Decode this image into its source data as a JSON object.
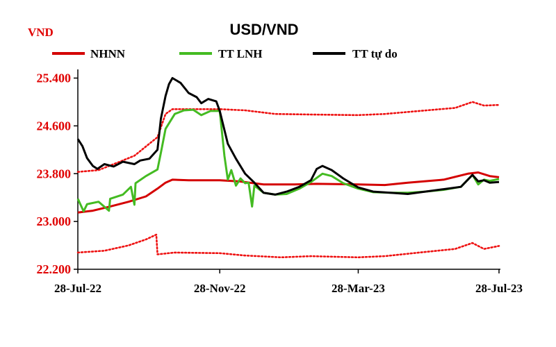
{
  "chart_data": {
    "type": "line",
    "title": "USD/VND",
    "unit_label": "VND",
    "ylim": [
      22200,
      25800
    ],
    "y_ticks": [
      22200,
      23000,
      23800,
      24600,
      25400
    ],
    "y_tick_labels": [
      "22.200",
      "23.000",
      "23.800",
      "24.600",
      "25.400"
    ],
    "x_ticks": [
      "2022-07-28",
      "2022-11-28",
      "2023-03-28",
      "2023-07-28"
    ],
    "x_tick_labels": [
      "28-Jul-22",
      "28-Nov-22",
      "28-Mar-23",
      "28-Jul-23"
    ],
    "xlim": [
      "2022-07-28",
      "2023-07-28"
    ],
    "grid": false,
    "legend_position": "top",
    "series": [
      {
        "name": "NHNN",
        "color": "#d40000",
        "style": "solid",
        "points": [
          [
            "2022-07-28",
            23150
          ],
          [
            "2022-08-10",
            23180
          ],
          [
            "2022-08-25",
            23250
          ],
          [
            "2022-09-10",
            23330
          ],
          [
            "2022-09-25",
            23420
          ],
          [
            "2022-10-05",
            23550
          ],
          [
            "2022-10-12",
            23650
          ],
          [
            "2022-10-18",
            23700
          ],
          [
            "2022-11-01",
            23690
          ],
          [
            "2022-11-28",
            23690
          ],
          [
            "2022-12-15",
            23670
          ],
          [
            "2023-01-05",
            23620
          ],
          [
            "2023-02-01",
            23620
          ],
          [
            "2023-02-20",
            23630
          ],
          [
            "2023-03-28",
            23620
          ],
          [
            "2023-04-20",
            23610
          ],
          [
            "2023-05-10",
            23650
          ],
          [
            "2023-06-10",
            23700
          ],
          [
            "2023-07-01",
            23800
          ],
          [
            "2023-07-10",
            23820
          ],
          [
            "2023-07-20",
            23760
          ],
          [
            "2023-07-28",
            23740
          ]
        ]
      },
      {
        "name": "",
        "color": "#ee1111",
        "style": "dotted",
        "points": [
          [
            "2022-07-28",
            23830
          ],
          [
            "2022-08-15",
            23860
          ],
          [
            "2022-09-01",
            23990
          ],
          [
            "2022-09-15",
            24100
          ],
          [
            "2022-10-05",
            24410
          ],
          [
            "2022-10-12",
            24800
          ],
          [
            "2022-10-18",
            24880
          ],
          [
            "2022-11-28",
            24880
          ],
          [
            "2022-12-20",
            24860
          ],
          [
            "2023-01-15",
            24800
          ],
          [
            "2023-02-15",
            24790
          ],
          [
            "2023-03-28",
            24780
          ],
          [
            "2023-04-20",
            24800
          ],
          [
            "2023-05-20",
            24850
          ],
          [
            "2023-06-20",
            24900
          ],
          [
            "2023-07-05",
            25000
          ],
          [
            "2023-07-15",
            24940
          ],
          [
            "2023-07-28",
            24950
          ]
        ]
      },
      {
        "name": "",
        "color": "#ee1111",
        "style": "dotted",
        "points": [
          [
            "2022-07-28",
            22480
          ],
          [
            "2022-08-20",
            22510
          ],
          [
            "2022-09-10",
            22600
          ],
          [
            "2022-09-25",
            22700
          ],
          [
            "2022-10-04",
            22780
          ],
          [
            "2022-10-05",
            22450
          ],
          [
            "2022-10-20",
            22480
          ],
          [
            "2022-11-28",
            22470
          ],
          [
            "2022-12-20",
            22430
          ],
          [
            "2023-01-20",
            22400
          ],
          [
            "2023-02-15",
            22420
          ],
          [
            "2023-03-28",
            22400
          ],
          [
            "2023-04-20",
            22420
          ],
          [
            "2023-05-20",
            22480
          ],
          [
            "2023-06-20",
            22540
          ],
          [
            "2023-07-05",
            22640
          ],
          [
            "2023-07-15",
            22540
          ],
          [
            "2023-07-28",
            22590
          ]
        ]
      },
      {
        "name": "TT LNH",
        "color": "#44bb22",
        "style": "solid",
        "points": [
          [
            "2022-07-28",
            23380
          ],
          [
            "2022-08-02",
            23170
          ],
          [
            "2022-08-05",
            23290
          ],
          [
            "2022-08-15",
            23330
          ],
          [
            "2022-08-24",
            23180
          ],
          [
            "2022-08-25",
            23380
          ],
          [
            "2022-09-05",
            23450
          ],
          [
            "2022-09-12",
            23580
          ],
          [
            "2022-09-15",
            23280
          ],
          [
            "2022-09-16",
            23640
          ],
          [
            "2022-09-25",
            23760
          ],
          [
            "2022-10-05",
            23870
          ],
          [
            "2022-10-08",
            24150
          ],
          [
            "2022-10-12",
            24550
          ],
          [
            "2022-10-20",
            24800
          ],
          [
            "2022-10-28",
            24860
          ],
          [
            "2022-11-05",
            24870
          ],
          [
            "2022-11-12",
            24780
          ],
          [
            "2022-11-20",
            24850
          ],
          [
            "2022-11-28",
            24850
          ],
          [
            "2022-12-02",
            24100
          ],
          [
            "2022-12-05",
            23700
          ],
          [
            "2022-12-08",
            23860
          ],
          [
            "2022-12-12",
            23600
          ],
          [
            "2022-12-16",
            23720
          ],
          [
            "2022-12-20",
            23640
          ],
          [
            "2022-12-23",
            23650
          ],
          [
            "2022-12-26",
            23250
          ],
          [
            "2022-12-28",
            23600
          ],
          [
            "2023-01-05",
            23480
          ],
          [
            "2023-01-15",
            23450
          ],
          [
            "2023-01-25",
            23460
          ],
          [
            "2023-02-05",
            23550
          ],
          [
            "2023-02-15",
            23660
          ],
          [
            "2023-02-25",
            23800
          ],
          [
            "2023-03-05",
            23760
          ],
          [
            "2023-03-15",
            23640
          ],
          [
            "2023-03-28",
            23550
          ],
          [
            "2023-04-10",
            23490
          ],
          [
            "2023-04-25",
            23480
          ],
          [
            "2023-05-10",
            23480
          ],
          [
            "2023-05-25",
            23500
          ],
          [
            "2023-06-10",
            23530
          ],
          [
            "2023-06-25",
            23580
          ],
          [
            "2023-07-05",
            23780
          ],
          [
            "2023-07-10",
            23620
          ],
          [
            "2023-07-15",
            23700
          ],
          [
            "2023-07-20",
            23680
          ],
          [
            "2023-07-28",
            23710
          ]
        ]
      },
      {
        "name": "TT tự do",
        "color": "#000000",
        "style": "solid",
        "points": [
          [
            "2022-07-28",
            24380
          ],
          [
            "2022-08-01",
            24260
          ],
          [
            "2022-08-05",
            24060
          ],
          [
            "2022-08-10",
            23930
          ],
          [
            "2022-08-14",
            23880
          ],
          [
            "2022-08-20",
            23960
          ],
          [
            "2022-08-28",
            23920
          ],
          [
            "2022-09-05",
            24000
          ],
          [
            "2022-09-15",
            23960
          ],
          [
            "2022-09-20",
            24020
          ],
          [
            "2022-09-28",
            24050
          ],
          [
            "2022-10-05",
            24200
          ],
          [
            "2022-10-08",
            24720
          ],
          [
            "2022-10-12",
            25100
          ],
          [
            "2022-10-15",
            25300
          ],
          [
            "2022-10-18",
            25400
          ],
          [
            "2022-10-25",
            25320
          ],
          [
            "2022-11-01",
            25150
          ],
          [
            "2022-11-08",
            25080
          ],
          [
            "2022-11-12",
            24980
          ],
          [
            "2022-11-18",
            25050
          ],
          [
            "2022-11-25",
            25010
          ],
          [
            "2022-11-28",
            24850
          ],
          [
            "2022-12-05",
            24300
          ],
          [
            "2022-12-12",
            24050
          ],
          [
            "2022-12-20",
            23800
          ],
          [
            "2022-12-28",
            23650
          ],
          [
            "2023-01-05",
            23480
          ],
          [
            "2023-01-15",
            23450
          ],
          [
            "2023-01-25",
            23500
          ],
          [
            "2023-02-05",
            23580
          ],
          [
            "2023-02-15",
            23690
          ],
          [
            "2023-02-20",
            23880
          ],
          [
            "2023-02-25",
            23930
          ],
          [
            "2023-03-05",
            23860
          ],
          [
            "2023-03-15",
            23720
          ],
          [
            "2023-03-28",
            23570
          ],
          [
            "2023-04-10",
            23500
          ],
          [
            "2023-04-25",
            23480
          ],
          [
            "2023-05-10",
            23460
          ],
          [
            "2023-05-25",
            23500
          ],
          [
            "2023-06-10",
            23540
          ],
          [
            "2023-06-25",
            23580
          ],
          [
            "2023-07-05",
            23780
          ],
          [
            "2023-07-10",
            23670
          ],
          [
            "2023-07-15",
            23690
          ],
          [
            "2023-07-20",
            23650
          ],
          [
            "2023-07-28",
            23660
          ]
        ]
      }
    ]
  }
}
